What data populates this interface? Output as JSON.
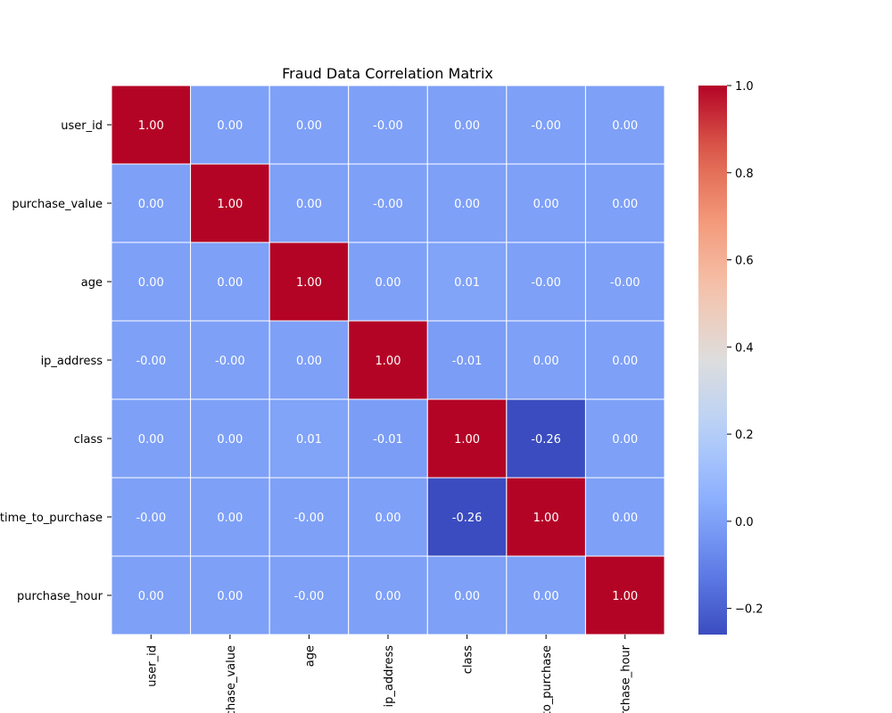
{
  "chart_data": {
    "type": "heatmap",
    "title": "Fraud Data Correlation Matrix",
    "row_labels": [
      "user_id",
      "purchase_value",
      "age",
      "ip_address",
      "class",
      "time_to_purchase",
      "purchase_hour"
    ],
    "col_labels": [
      "user_id",
      "purchase_value",
      "age",
      "ip_address",
      "class",
      "time_to_purchase",
      "purchase_hour"
    ],
    "values": [
      [
        1.0,
        0.0,
        0.0,
        -0.0,
        0.0,
        -0.0,
        0.0
      ],
      [
        0.0,
        1.0,
        0.0,
        -0.0,
        0.0,
        0.0,
        0.0
      ],
      [
        0.0,
        0.0,
        1.0,
        0.0,
        0.01,
        -0.0,
        -0.0
      ],
      [
        -0.0,
        -0.0,
        0.0,
        1.0,
        -0.01,
        0.0,
        0.0
      ],
      [
        0.0,
        0.0,
        0.01,
        -0.01,
        1.0,
        -0.26,
        0.0
      ],
      [
        -0.0,
        0.0,
        -0.0,
        0.0,
        -0.26,
        1.0,
        0.0
      ],
      [
        0.0,
        0.0,
        -0.0,
        0.0,
        0.0,
        0.0,
        1.0
      ]
    ],
    "cell_labels": [
      [
        "1.00",
        "0.00",
        "0.00",
        "-0.00",
        "0.00",
        "-0.00",
        "0.00"
      ],
      [
        "0.00",
        "1.00",
        "0.00",
        "-0.00",
        "0.00",
        "0.00",
        "0.00"
      ],
      [
        "0.00",
        "0.00",
        "1.00",
        "0.00",
        "0.01",
        "-0.00",
        "-0.00"
      ],
      [
        "-0.00",
        "-0.00",
        "0.00",
        "1.00",
        "-0.01",
        "0.00",
        "0.00"
      ],
      [
        "0.00",
        "0.00",
        "0.01",
        "-0.01",
        "1.00",
        "-0.26",
        "0.00"
      ],
      [
        "-0.00",
        "0.00",
        "-0.00",
        "0.00",
        "-0.26",
        "1.00",
        "0.00"
      ],
      [
        "0.00",
        "0.00",
        "-0.00",
        "0.00",
        "0.00",
        "0.00",
        "1.00"
      ]
    ],
    "colormap": "coolwarm",
    "vmin": -0.26,
    "vmax": 1.0,
    "colorbar_ticks": [
      1.0,
      0.8,
      0.6,
      0.4,
      0.2,
      0.0,
      -0.2
    ],
    "colorbar_tick_labels": [
      "1.0",
      "0.8",
      "0.6",
      "0.4",
      "0.2",
      "0.0",
      "−0.2"
    ],
    "grid": true,
    "legend": "colorbar-right"
  }
}
